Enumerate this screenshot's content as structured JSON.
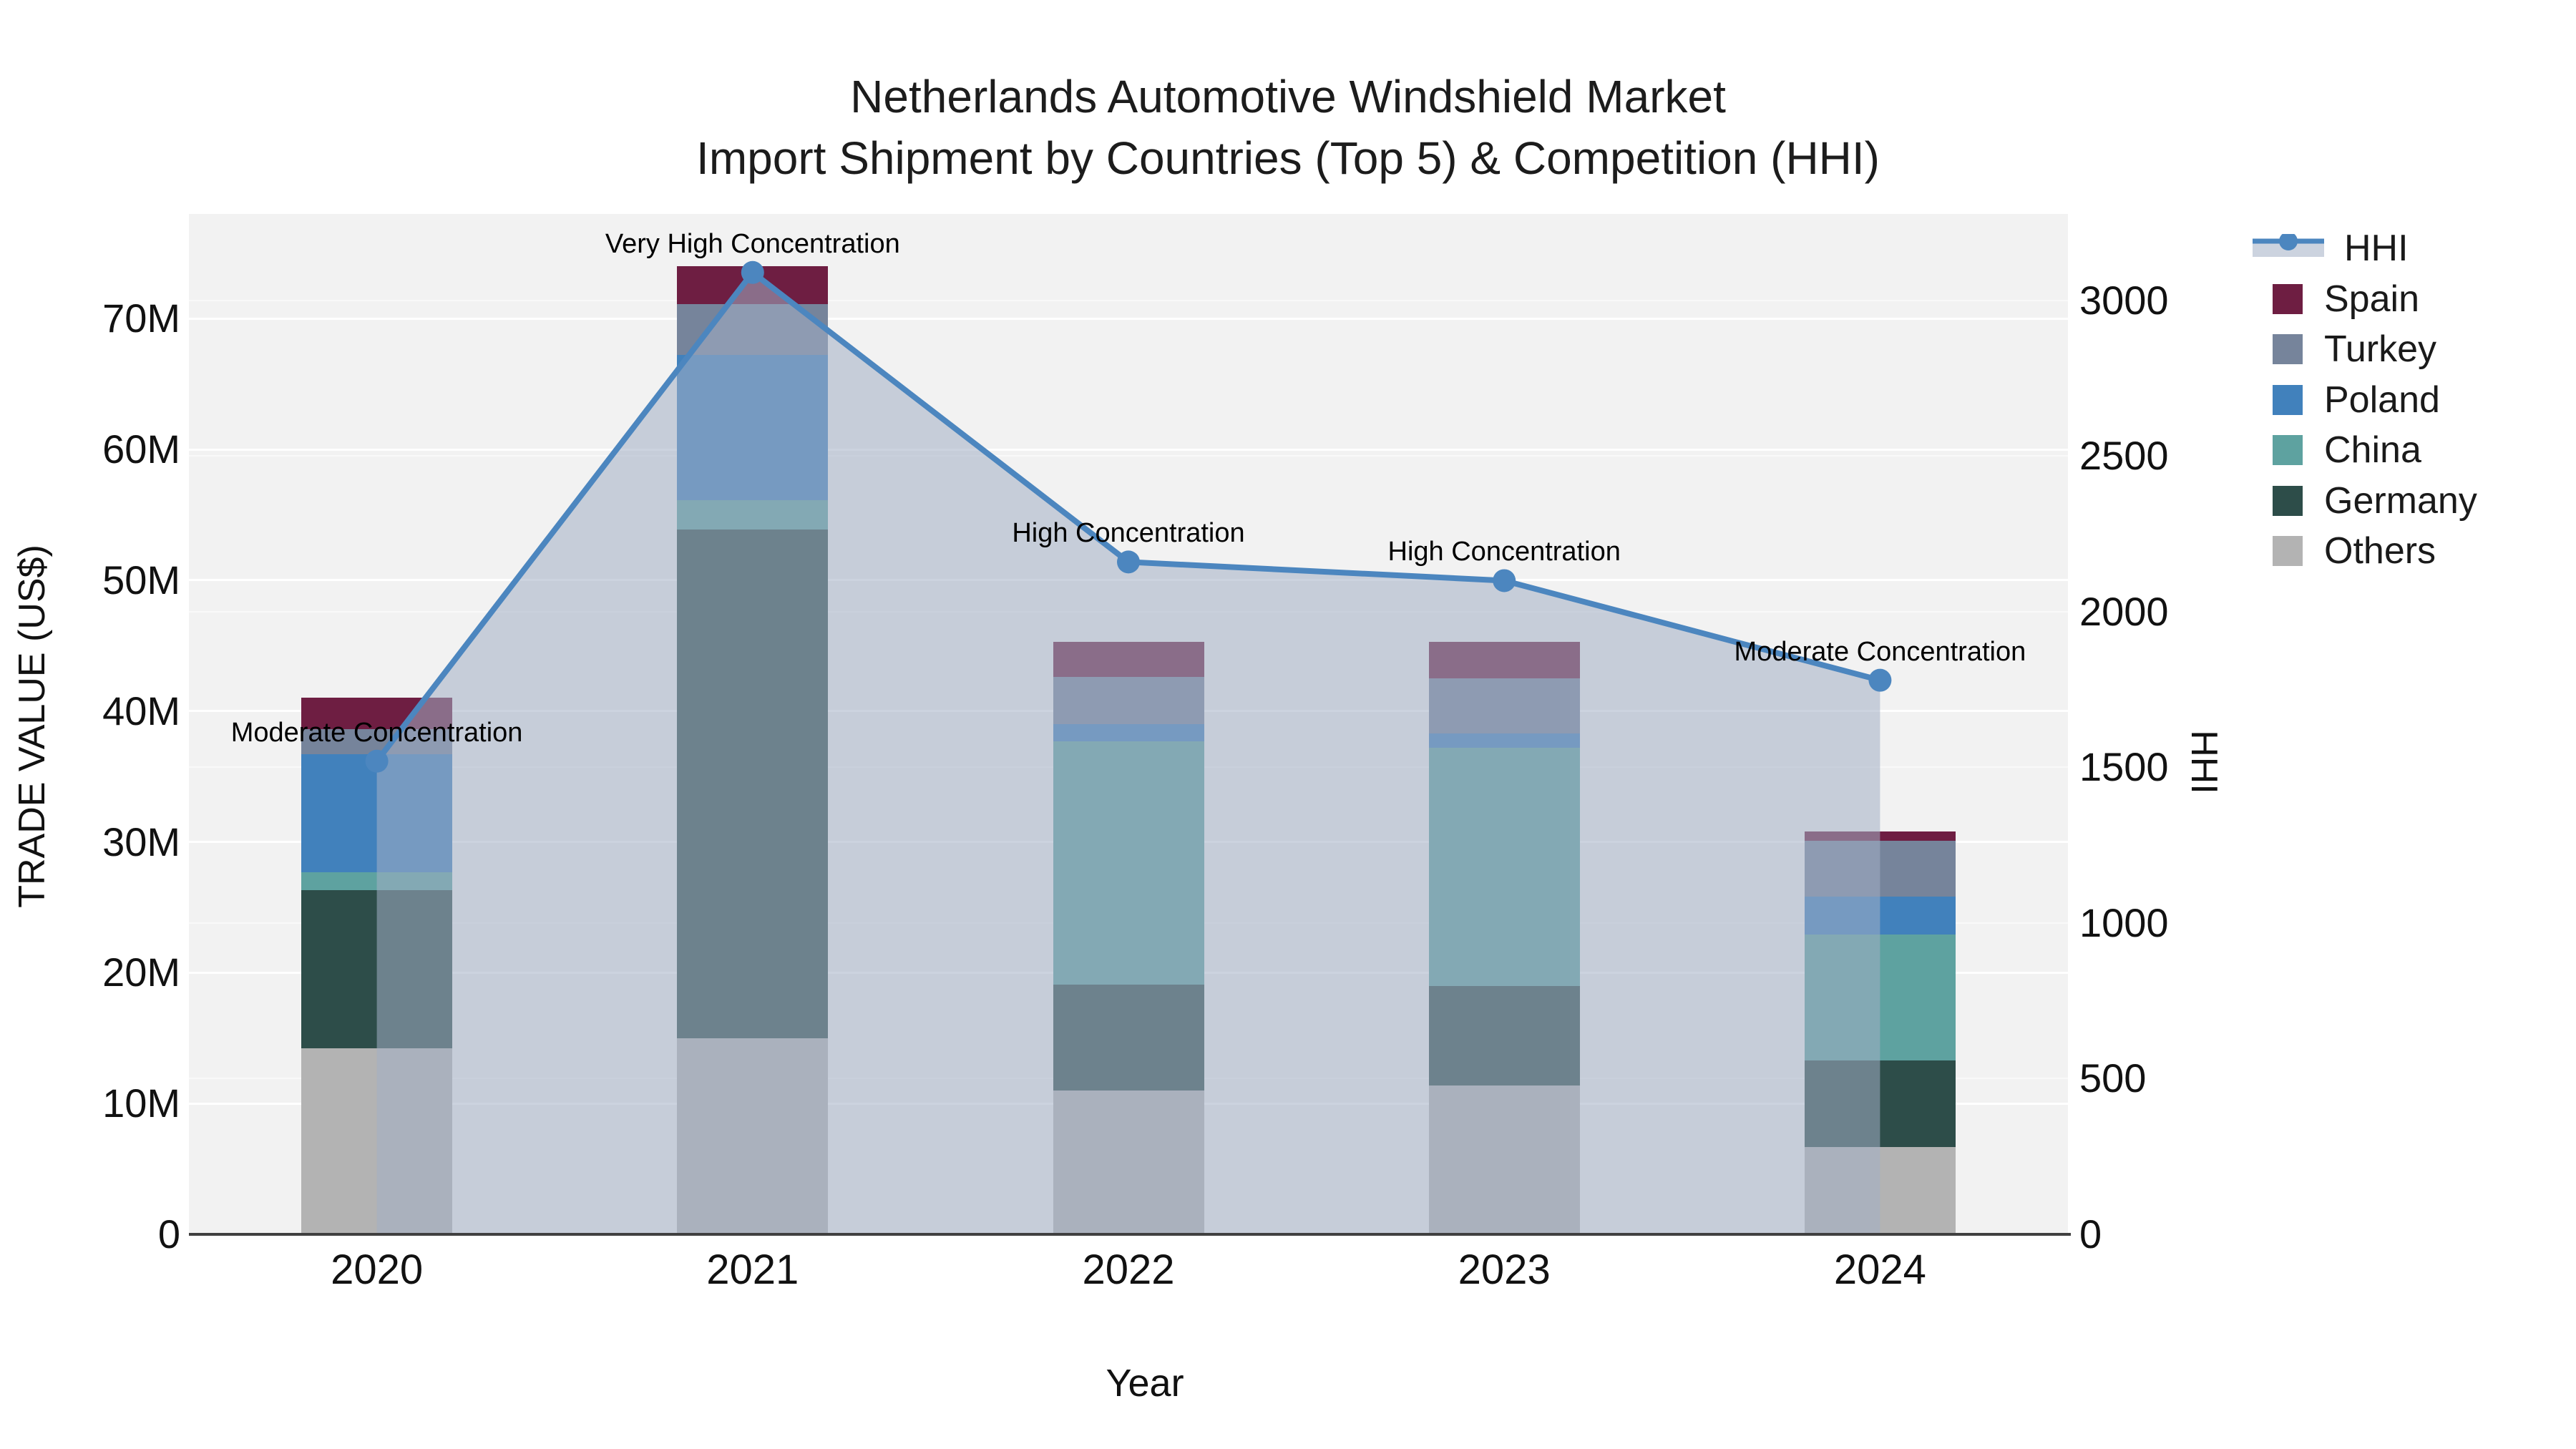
{
  "chart_data": {
    "type": "combo_stacked_bar_line",
    "title_lines": [
      "Netherlands Automotive Windshield Market",
      "Import Shipment by Countries (Top 5) & Competition (HHI)"
    ],
    "categories": [
      "2020",
      "2021",
      "2022",
      "2023",
      "2024"
    ],
    "bar_unit": "million US$",
    "bar_series": [
      {
        "name": "Others",
        "color": "#b3b3b3",
        "values": [
          14.2,
          15.0,
          11.0,
          11.4,
          6.7
        ]
      },
      {
        "name": "Germany",
        "color": "#2d4d49",
        "values": [
          12.1,
          38.9,
          8.1,
          7.6,
          6.6
        ]
      },
      {
        "name": "China",
        "color": "#5ea2a0",
        "values": [
          1.4,
          2.2,
          18.6,
          18.2,
          9.6
        ]
      },
      {
        "name": "Poland",
        "color": "#4181bc",
        "values": [
          9.0,
          11.1,
          1.3,
          1.1,
          2.9
        ]
      },
      {
        "name": "Turkey",
        "color": "#76849b",
        "values": [
          1.9,
          3.9,
          3.6,
          4.2,
          4.3
        ]
      },
      {
        "name": "Spain",
        "color": "#6e1e42",
        "values": [
          2.4,
          2.9,
          2.7,
          2.8,
          0.7
        ]
      }
    ],
    "bar_totals": [
      41.0,
      74.0,
      45.3,
      45.3,
      30.8
    ],
    "line_series": {
      "name": "HHI",
      "axis": "right",
      "color": "#4c86bf",
      "area_fill_color": "rgba(163,174,196,0.55)",
      "values": [
        1520,
        3090,
        2160,
        2100,
        1780
      ]
    },
    "annotations": [
      {
        "category": "2020",
        "text": "Moderate Concentration"
      },
      {
        "category": "2021",
        "text": "Very High Concentration"
      },
      {
        "category": "2022",
        "text": "High Concentration"
      },
      {
        "category": "2023",
        "text": "High Concentration"
      },
      {
        "category": "2024",
        "text": "Moderate Concentration"
      }
    ],
    "axes": {
      "left": {
        "title": "TRADE VALUE (US$)",
        "tick_labels": [
          "0",
          "10M",
          "20M",
          "30M",
          "40M",
          "50M",
          "60M",
          "70M"
        ],
        "tick_values_musd": [
          0,
          10,
          20,
          30,
          40,
          50,
          60,
          70
        ],
        "range_musd": [
          0,
          78
        ]
      },
      "right": {
        "title": "HHI",
        "tick_labels": [
          "0",
          "500",
          "1000",
          "1500",
          "2000",
          "2500",
          "3000"
        ],
        "tick_values": [
          0,
          500,
          1000,
          1500,
          2000,
          2500,
          3000
        ],
        "range": [
          0,
          3278
        ]
      },
      "x": {
        "title": "Year"
      }
    },
    "legend": [
      {
        "label": "HHI",
        "swatch": "line",
        "color": "#4c86bf"
      },
      {
        "label": "Spain",
        "swatch": "square",
        "color": "#6e1e42"
      },
      {
        "label": "Turkey",
        "swatch": "square",
        "color": "#76849b"
      },
      {
        "label": "Poland",
        "swatch": "square",
        "color": "#4181bc"
      },
      {
        "label": "China",
        "swatch": "square",
        "color": "#5ea2a0"
      },
      {
        "label": "Germany",
        "swatch": "square",
        "color": "#2d4d49"
      },
      {
        "label": "Others",
        "swatch": "square",
        "color": "#b3b3b3"
      }
    ],
    "legend_position": "top-right",
    "plot_background": "#f2f2f2",
    "grid": true
  }
}
